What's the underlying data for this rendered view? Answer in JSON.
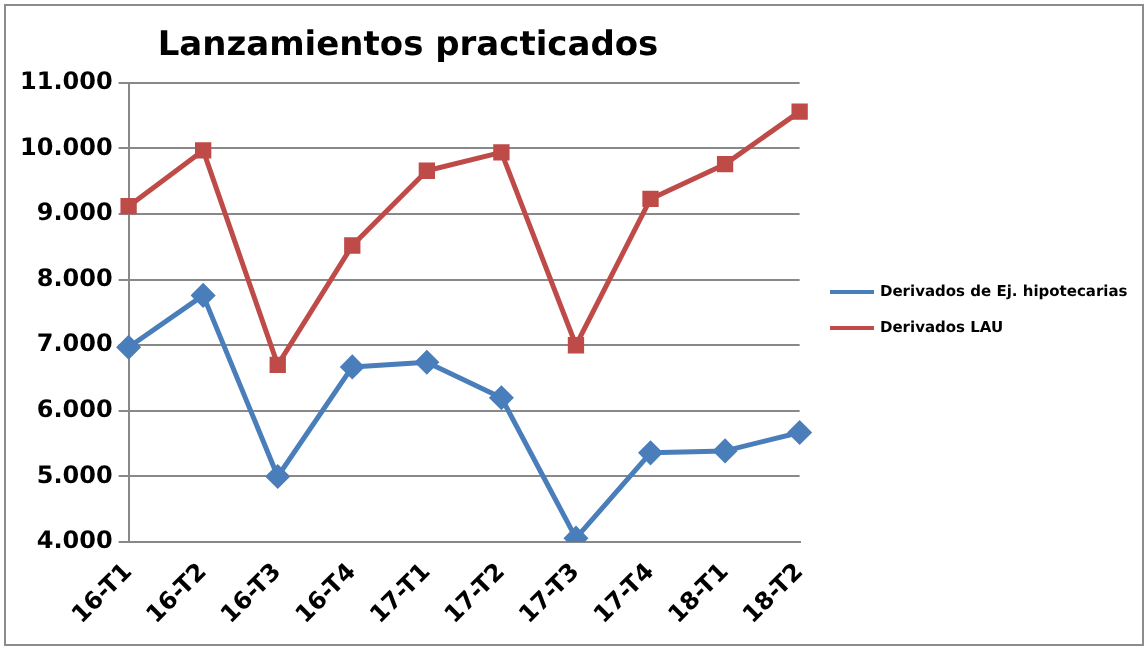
{
  "chart_data": {
    "type": "line",
    "title": "Lanzamientos practicados",
    "categories": [
      "16-T1",
      "16-T2",
      "16-T3",
      "16-T4",
      "17-T1",
      "17-T2",
      "17-T3",
      "17-T4",
      "18-T1",
      "18-T2"
    ],
    "series": [
      {
        "name": "Derivados de Ej. hipotecarias",
        "color": "#4a7ebb",
        "marker": "diamond",
        "values": [
          6970,
          7760,
          5000,
          6670,
          6740,
          6200,
          4060,
          5360,
          5390,
          5670
        ]
      },
      {
        "name": "Derivados LAU",
        "color": "#be4b48",
        "marker": "square",
        "values": [
          9120,
          9970,
          6700,
          8520,
          9660,
          9940,
          7000,
          9230,
          9760,
          10560
        ]
      }
    ],
    "ylim": [
      4000,
      11000
    ],
    "yticks": [
      {
        "value": 4000,
        "label": "4.000"
      },
      {
        "value": 5000,
        "label": "5.000"
      },
      {
        "value": 6000,
        "label": "6.000"
      },
      {
        "value": 7000,
        "label": "7.000"
      },
      {
        "value": 8000,
        "label": "8.000"
      },
      {
        "value": 9000,
        "label": "9.000"
      },
      {
        "value": 10000,
        "label": "10.000"
      },
      {
        "value": 11000,
        "label": "11.000"
      }
    ],
    "grid": "y",
    "legend": "right"
  }
}
